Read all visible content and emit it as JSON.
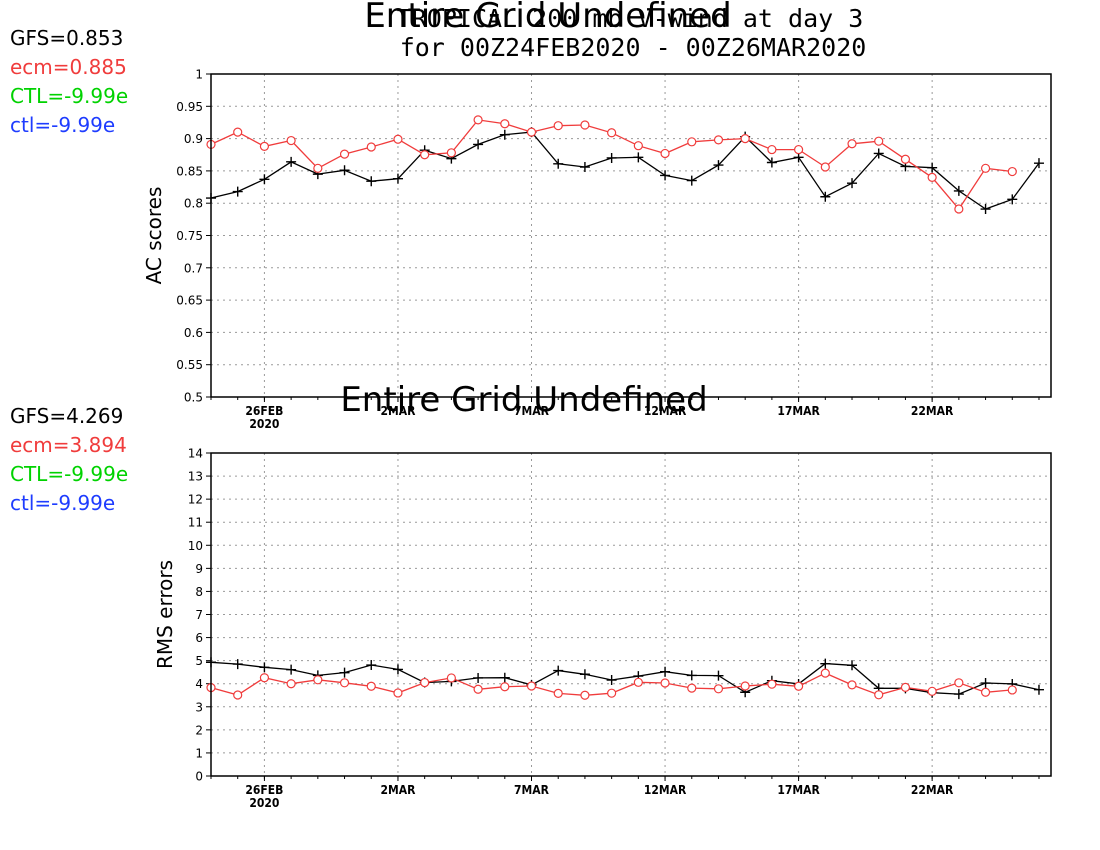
{
  "title_line1": "TROPICAL 200 mb V-wind at day 3",
  "title_line2": "for 00Z24FEB2020 - 00Z26MAR2020",
  "overlay_top": "Entire Grid Undefined",
  "overlay_bottom": "Entire Grid Undefined",
  "colors": {
    "gfs": "#000000",
    "ecm": "#f03c3c",
    "CTL": "#00d200",
    "ctl": "#1e3cff"
  },
  "legend_top": [
    {
      "text": "GFS=0.853",
      "color": "black"
    },
    {
      "text": "ecm=0.885",
      "color": "red"
    },
    {
      "text": "CTL=-9.99e",
      "color": "green"
    },
    {
      "text": "ctl=-9.99e",
      "color": "blue"
    }
  ],
  "legend_bottom": [
    {
      "text": "GFS=4.269",
      "color": "black"
    },
    {
      "text": "ecm=3.894",
      "color": "red"
    },
    {
      "text": "CTL=-9.99e",
      "color": "green"
    },
    {
      "text": "ctl=-9.99e",
      "color": "blue"
    }
  ],
  "chart_data": [
    {
      "type": "line",
      "ylabel": "AC scores",
      "ylim": [
        0.5,
        1
      ],
      "yticks": [
        "0.5",
        "0.55",
        "0.6",
        "0.65",
        "0.7",
        "0.75",
        "0.8",
        "0.85",
        "0.9",
        "0.95",
        "1"
      ],
      "x": [
        "24FEB",
        "25FEB",
        "26FEB",
        "27FEB",
        "28FEB",
        "29FEB",
        "1MAR",
        "2MAR",
        "3MAR",
        "4MAR",
        "5MAR",
        "6MAR",
        "7MAR",
        "8MAR",
        "9MAR",
        "10MAR",
        "11MAR",
        "12MAR",
        "13MAR",
        "14MAR",
        "15MAR",
        "16MAR",
        "17MAR",
        "18MAR",
        "19MAR",
        "20MAR",
        "21MAR",
        "22MAR",
        "23MAR",
        "24MAR",
        "25MAR",
        "26MAR"
      ],
      "xticks": [
        {
          "label": "26FEB",
          "sub": "2020",
          "index": 2
        },
        {
          "label": "2MAR",
          "index": 7
        },
        {
          "label": "7MAR",
          "index": 12
        },
        {
          "label": "12MAR",
          "index": 17
        },
        {
          "label": "17MAR",
          "index": 22
        },
        {
          "label": "22MAR",
          "index": 27
        }
      ],
      "grid": true,
      "series": [
        {
          "name": "GFS",
          "marker": "plus",
          "color": "#000000",
          "values": [
            0.808,
            0.818,
            0.837,
            0.864,
            0.845,
            0.851,
            0.834,
            0.838,
            0.882,
            0.869,
            0.891,
            0.906,
            0.91,
            0.861,
            0.856,
            0.87,
            0.871,
            0.843,
            0.835,
            0.859,
            0.903,
            0.863,
            0.871,
            0.81,
            0.831,
            0.877,
            0.857,
            0.855,
            0.819,
            0.791,
            0.806,
            0.862
          ]
        },
        {
          "name": "ecm",
          "marker": "circle",
          "color": "#f03c3c",
          "values": [
            0.891,
            0.91,
            0.888,
            0.897,
            0.854,
            0.876,
            0.887,
            0.899,
            0.875,
            0.878,
            0.929,
            0.923,
            0.91,
            0.92,
            0.921,
            0.909,
            0.889,
            0.877,
            0.895,
            0.898,
            0.9,
            0.883,
            0.883,
            0.856,
            0.892,
            0.896,
            0.868,
            0.84,
            0.791,
            0.854,
            0.849,
            null
          ]
        }
      ]
    },
    {
      "type": "line",
      "ylabel": "RMS errors",
      "ylim": [
        0,
        14
      ],
      "yticks": [
        "0",
        "1",
        "2",
        "3",
        "4",
        "5",
        "6",
        "7",
        "8",
        "9",
        "10",
        "11",
        "12",
        "13",
        "14"
      ],
      "x": [
        "24FEB",
        "25FEB",
        "26FEB",
        "27FEB",
        "28FEB",
        "29FEB",
        "1MAR",
        "2MAR",
        "3MAR",
        "4MAR",
        "5MAR",
        "6MAR",
        "7MAR",
        "8MAR",
        "9MAR",
        "10MAR",
        "11MAR",
        "12MAR",
        "13MAR",
        "14MAR",
        "15MAR",
        "16MAR",
        "17MAR",
        "18MAR",
        "19MAR",
        "20MAR",
        "21MAR",
        "22MAR",
        "23MAR",
        "24MAR",
        "25MAR",
        "26MAR"
      ],
      "xticks": [
        {
          "label": "26FEB",
          "sub": "2020",
          "index": 2
        },
        {
          "label": "2MAR",
          "index": 7
        },
        {
          "label": "7MAR",
          "index": 12
        },
        {
          "label": "12MAR",
          "index": 17
        },
        {
          "label": "17MAR",
          "index": 22
        },
        {
          "label": "22MAR",
          "index": 27
        }
      ],
      "grid": true,
      "series": [
        {
          "name": "GFS",
          "marker": "plus",
          "color": "#000000",
          "values": [
            4.93,
            4.85,
            4.71,
            4.61,
            4.36,
            4.48,
            4.81,
            4.62,
            4.05,
            4.1,
            4.25,
            4.26,
            3.95,
            4.57,
            4.41,
            4.16,
            4.33,
            4.52,
            4.36,
            4.35,
            3.63,
            4.13,
            3.99,
            4.87,
            4.8,
            3.8,
            3.8,
            3.61,
            3.55,
            4.03,
            3.99,
            3.74
          ]
        },
        {
          "name": "ecm",
          "marker": "circle",
          "color": "#f03c3c",
          "values": [
            3.83,
            3.51,
            4.26,
            4.0,
            4.17,
            4.04,
            3.89,
            3.6,
            4.05,
            4.25,
            3.76,
            3.87,
            3.9,
            3.58,
            3.5,
            3.59,
            4.06,
            4.03,
            3.81,
            3.78,
            3.9,
            3.98,
            3.89,
            4.46,
            3.95,
            3.52,
            3.84,
            3.67,
            4.04,
            3.63,
            3.73,
            null
          ]
        }
      ]
    }
  ]
}
